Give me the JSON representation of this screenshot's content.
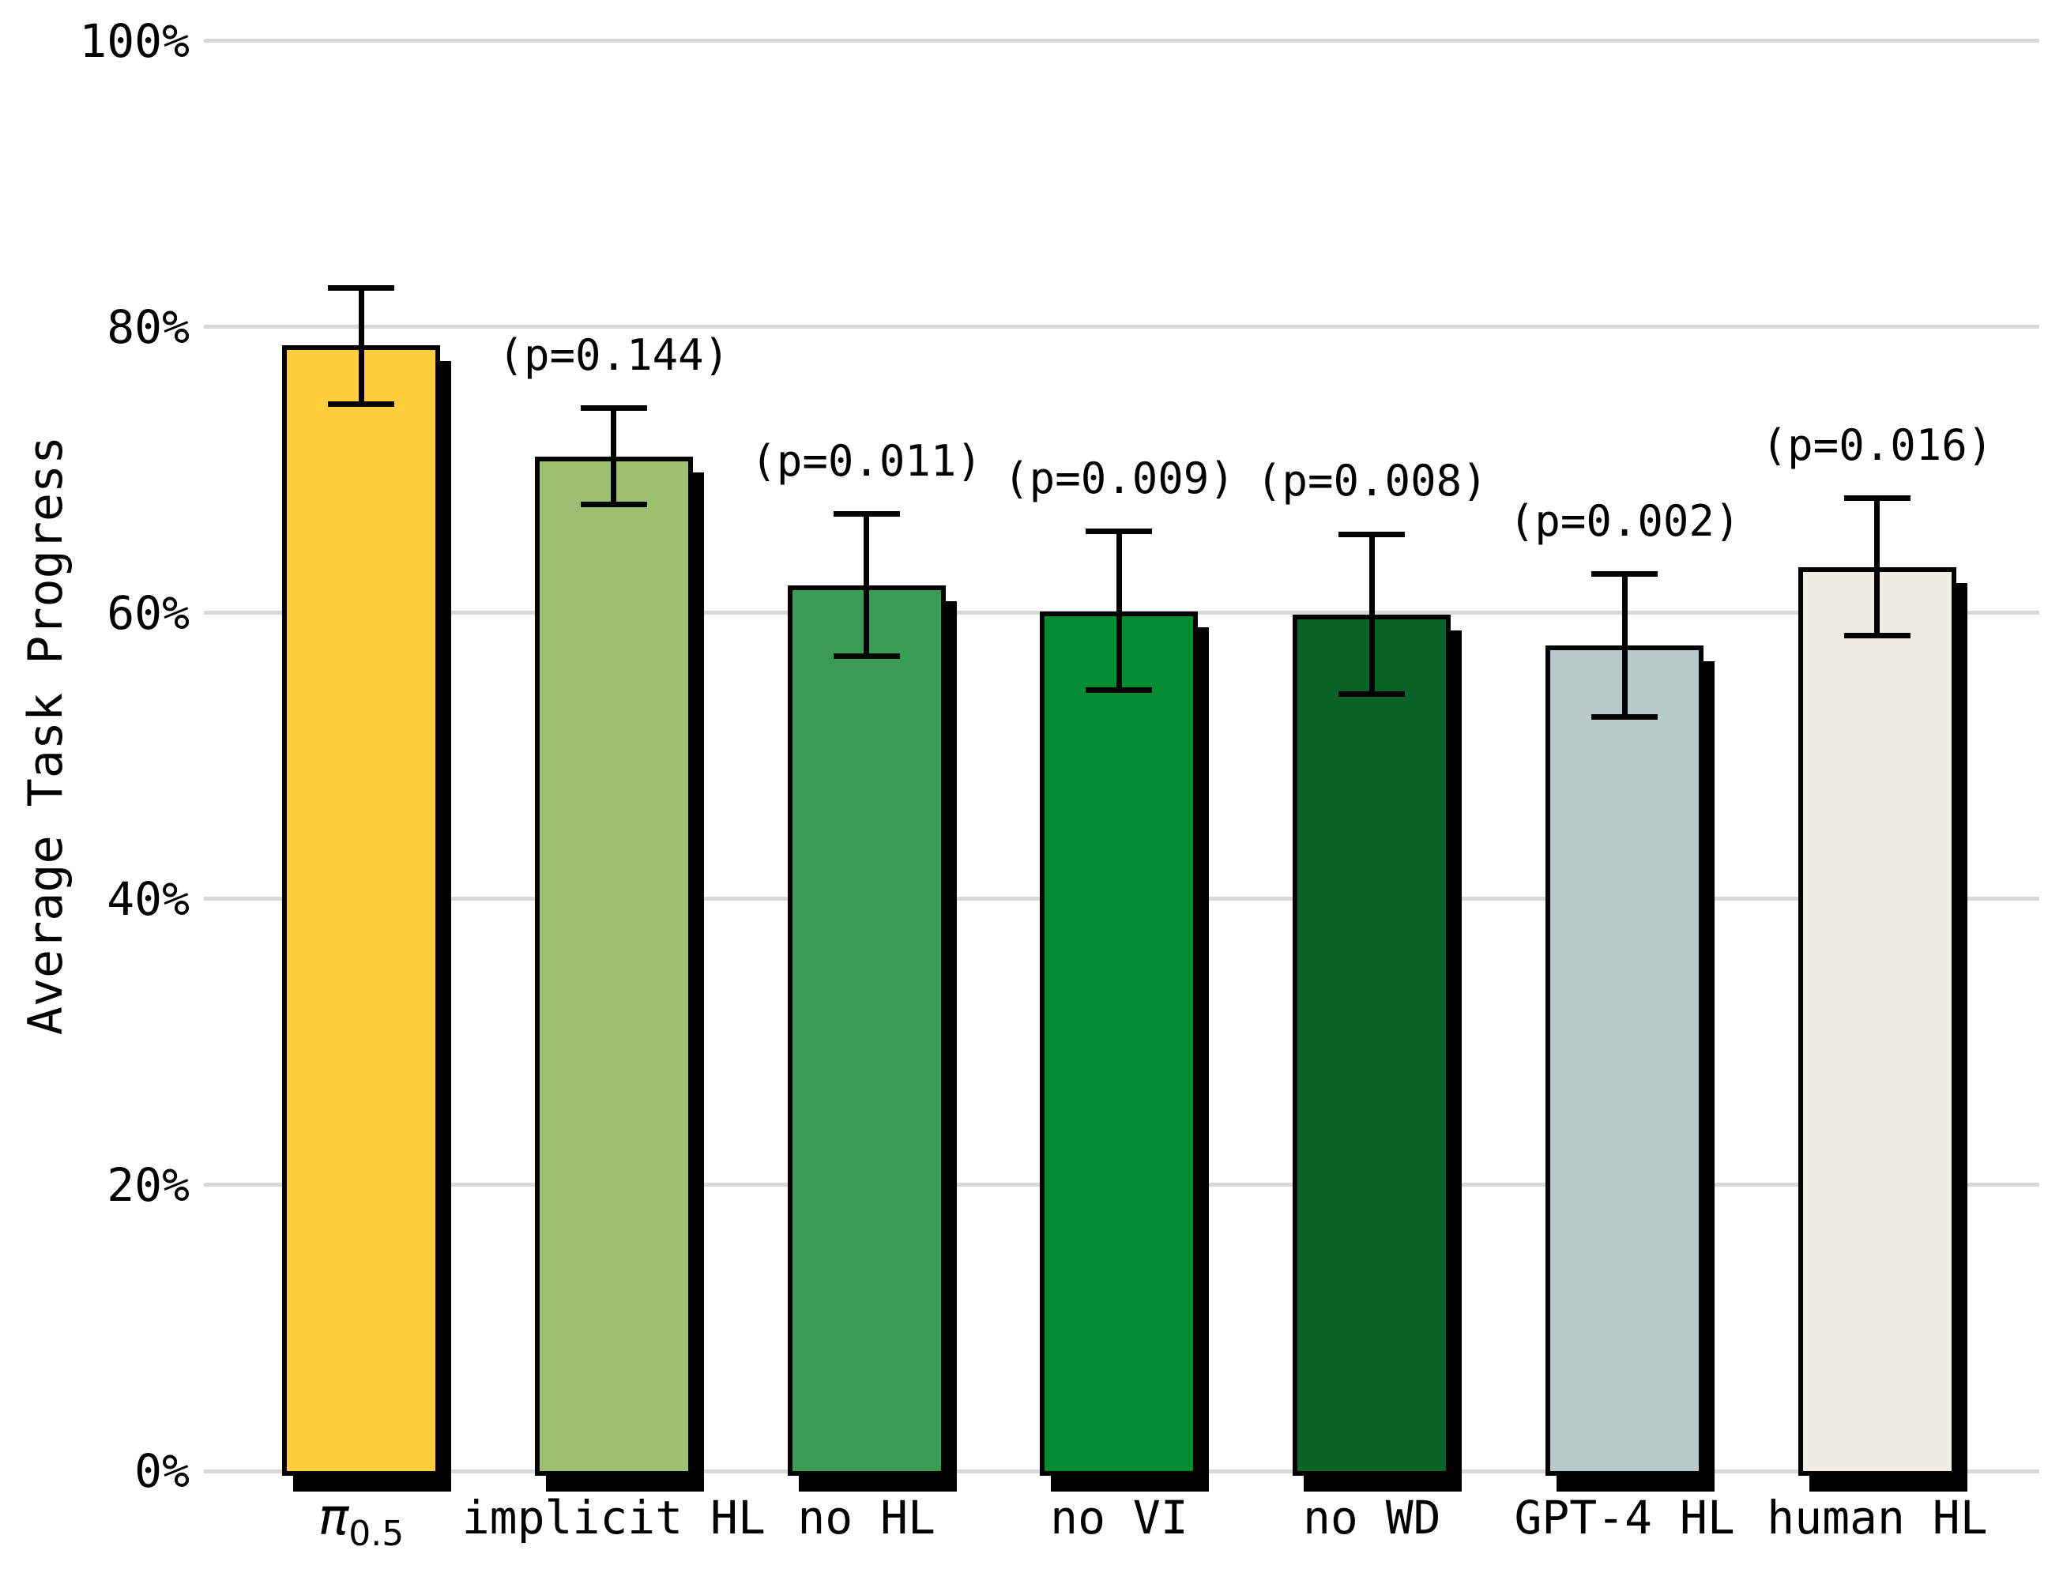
{
  "chart_data": {
    "type": "bar",
    "title": "",
    "xlabel": "",
    "ylabel": "Average Task Progress",
    "ylim": [
      0,
      100
    ],
    "grid": true,
    "legend": false,
    "yticks": [
      {
        "value": 0,
        "label": "0%"
      },
      {
        "value": 20,
        "label": "20%"
      },
      {
        "value": 40,
        "label": "40%"
      },
      {
        "value": 60,
        "label": "60%"
      },
      {
        "value": 80,
        "label": "80%"
      },
      {
        "value": 100,
        "label": "100%"
      }
    ],
    "categories": [
      "π0.5",
      "implicit HL",
      "no HL",
      "no VI",
      "no WD",
      "GPT-4 HL",
      "human HL"
    ],
    "bars": [
      {
        "label": "π0.5",
        "label_base": "π",
        "label_sub": "0.5",
        "value": 78.7,
        "err_low": 74.6,
        "err_high": 82.7,
        "p_label": "",
        "color": "#FFCF3B"
      },
      {
        "label": "implicit HL",
        "value": 70.9,
        "err_low": 67.6,
        "err_high": 74.3,
        "p_label": "(p=0.144)",
        "color": "#9CBF72"
      },
      {
        "label": "no HL",
        "value": 61.9,
        "err_low": 57.0,
        "err_high": 66.9,
        "p_label": "(p=0.011)",
        "color": "#389D53"
      },
      {
        "label": "no VI",
        "value": 60.1,
        "err_low": 54.6,
        "err_high": 65.7,
        "p_label": "(p=0.009)",
        "color": "#068C30"
      },
      {
        "label": "no WD",
        "value": 59.9,
        "err_low": 54.3,
        "err_high": 65.5,
        "p_label": "(p=0.008)",
        "color": "#0B6226"
      },
      {
        "label": "GPT-4 HL",
        "value": 57.7,
        "err_low": 52.7,
        "err_high": 62.7,
        "p_label": "(p=0.002)",
        "color": "#B8CACA"
      },
      {
        "label": "human HL",
        "value": 63.2,
        "err_low": 58.4,
        "err_high": 68.0,
        "p_label": "(p=0.016)",
        "color": "#EFECE2"
      }
    ],
    "style": {
      "grid_color": "#D9D9D9",
      "bar_edge_color": "#000000",
      "shadow_color": "#000000",
      "error_color": "#000000"
    }
  }
}
